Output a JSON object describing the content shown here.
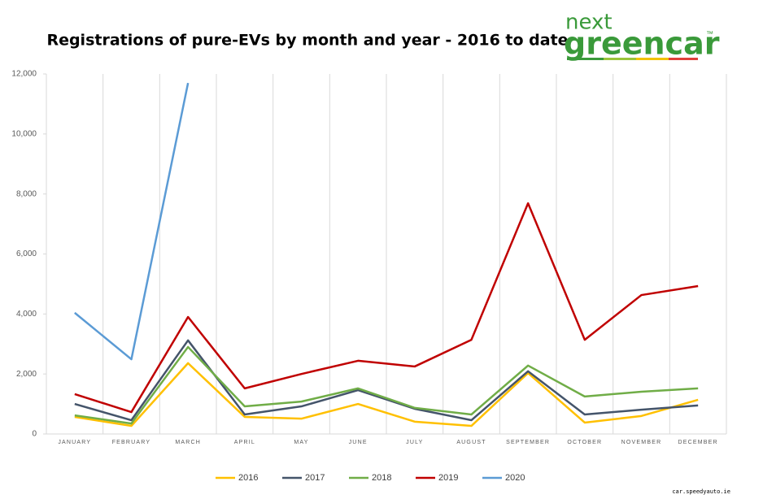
{
  "chart_data": {
    "type": "line",
    "title": "Registrations of pure-EVs by month and year - 2016 to date",
    "categories": [
      "JANUARY",
      "FEBRUARY",
      "MARCH",
      "APRIL",
      "MAY",
      "JUNE",
      "JULY",
      "AUGUST",
      "SEPTEMBER",
      "OCTOBER",
      "NOVEMBER",
      "DECEMBER"
    ],
    "series": [
      {
        "name": "2016",
        "color": "#ffc000",
        "values": [
          570,
          270,
          2360,
          570,
          510,
          1000,
          410,
          270,
          2030,
          380,
          600,
          1140
        ]
      },
      {
        "name": "2017",
        "color": "#44546a",
        "values": [
          1000,
          460,
          3120,
          650,
          920,
          1460,
          840,
          460,
          2090,
          650,
          810,
          950
        ]
      },
      {
        "name": "2018",
        "color": "#70ad47",
        "values": [
          620,
          350,
          2900,
          920,
          1080,
          1520,
          870,
          650,
          2280,
          1250,
          1410,
          1520
        ]
      },
      {
        "name": "2019",
        "color": "#c00000",
        "values": [
          1330,
          730,
          3900,
          1520,
          2000,
          2440,
          2250,
          3140,
          7690,
          3140,
          4630,
          4930
        ]
      },
      {
        "name": "2020",
        "color": "#5b9bd5",
        "values": [
          4040,
          2490,
          11700,
          null,
          null,
          null,
          null,
          null,
          null,
          null,
          null,
          null
        ]
      }
    ],
    "ylim": [
      0,
      12000
    ],
    "yticks": [
      0,
      {
        "value": 2000,
        "label": "2,000"
      },
      {
        "value": 4000,
        "label": "4,000"
      },
      {
        "value": 6000,
        "label": "6,000"
      },
      {
        "value": 8000,
        "label": "8,000"
      },
      {
        "value": 10000,
        "label": "10,000"
      },
      {
        "value": 12000,
        "label": "12,000"
      }
    ],
    "grid": true,
    "legend": "bottom"
  },
  "logo": {
    "top": "next",
    "main": "greencar",
    "tm": "™"
  },
  "watermark": "car.speedyauto.ie"
}
